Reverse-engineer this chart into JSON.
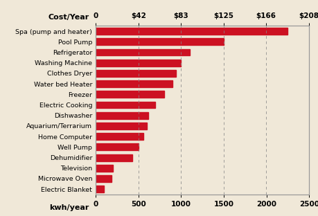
{
  "categories": [
    "Spa (pump and heater)",
    "Pool Pump",
    "Refrigerator",
    "Washing Machine",
    "Clothes Dryer",
    "Water bed Heater",
    "Freezer",
    "Electric Cooking",
    "Dishwasher",
    "Aquarium/Terrarium",
    "Home Computer",
    "Well Pump",
    "Dehumidifier",
    "Television",
    "Microwave Oven",
    "Electric Blanket"
  ],
  "values": [
    2250,
    1500,
    1100,
    1000,
    940,
    900,
    800,
    700,
    620,
    600,
    560,
    500,
    430,
    200,
    190,
    100
  ],
  "bar_color": "#cc1122",
  "background_color": "#f0e8d8",
  "xlabel": "kwh/year",
  "cost_label": "Cost/Year",
  "cost_ticks_dollars": [
    0,
    42,
    83,
    125,
    166,
    208
  ],
  "cost_tick_labels": [
    "0",
    "$42",
    "$83",
    "$125",
    "$166",
    "$208"
  ],
  "kwh_ticks": [
    0,
    500,
    1000,
    1500,
    2000,
    2500
  ],
  "kwh_tick_labels": [
    "0",
    "500",
    "1000",
    "1500",
    "2000",
    "2500"
  ],
  "xlim": [
    0,
    2500
  ],
  "max_cost": 208,
  "max_kwh": 2500
}
